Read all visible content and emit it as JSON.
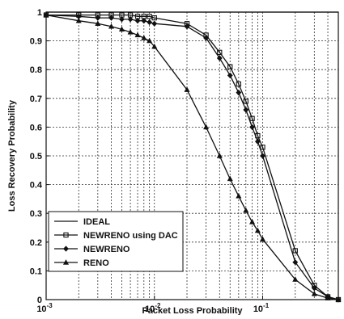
{
  "chart_data": {
    "type": "line",
    "xlabel": "Packet Loss Probability",
    "ylabel": "Loss Recovery Probability",
    "xscale": "log",
    "xlim": [
      0.001,
      0.5
    ],
    "ylim": [
      0,
      1
    ],
    "grid": true,
    "legend_position": "bottom-left",
    "x_ticks": [
      {
        "value": 0.001,
        "base": "10",
        "exp": "-3"
      },
      {
        "value": 0.01,
        "base": "10",
        "exp": "-2"
      },
      {
        "value": 0.1,
        "base": "10",
        "exp": "-1"
      }
    ],
    "y_ticks": [
      {
        "value": 0,
        "label": "0"
      },
      {
        "value": 0.1,
        "label": "0.1"
      },
      {
        "value": 0.2,
        "label": "0.2"
      },
      {
        "value": 0.3,
        "label": "0.3"
      },
      {
        "value": 0.4,
        "label": "0.4"
      },
      {
        "value": 0.5,
        "label": "0.5"
      },
      {
        "value": 0.6,
        "label": "0.6"
      },
      {
        "value": 0.7,
        "label": "0.7"
      },
      {
        "value": 0.8,
        "label": "0.8"
      },
      {
        "value": 0.9,
        "label": "0.9"
      },
      {
        "value": 1,
        "label": "1"
      }
    ],
    "series": [
      {
        "name": "IDEAL",
        "marker": "none",
        "points": [
          [
            0.001,
            1
          ],
          [
            0.5,
            1
          ]
        ]
      },
      {
        "name": "NEWRENO using DAC",
        "marker": "square",
        "points": [
          [
            0.001,
            0.99
          ],
          [
            0.002,
            0.99
          ],
          [
            0.003,
            0.99
          ],
          [
            0.004,
            0.99
          ],
          [
            0.005,
            0.99
          ],
          [
            0.006,
            0.99
          ],
          [
            0.007,
            0.985
          ],
          [
            0.008,
            0.985
          ],
          [
            0.009,
            0.985
          ],
          [
            0.01,
            0.98
          ],
          [
            0.02,
            0.96
          ],
          [
            0.03,
            0.92
          ],
          [
            0.04,
            0.86
          ],
          [
            0.05,
            0.81
          ],
          [
            0.06,
            0.75
          ],
          [
            0.07,
            0.69
          ],
          [
            0.08,
            0.63
          ],
          [
            0.09,
            0.57
          ],
          [
            0.1,
            0.53
          ],
          [
            0.2,
            0.17
          ],
          [
            0.3,
            0.05
          ],
          [
            0.4,
            0.01
          ],
          [
            0.5,
            0.0
          ]
        ]
      },
      {
        "name": "NEWRENO",
        "marker": "diamond",
        "points": [
          [
            0.001,
            0.99
          ],
          [
            0.002,
            0.985
          ],
          [
            0.003,
            0.98
          ],
          [
            0.004,
            0.98
          ],
          [
            0.005,
            0.975
          ],
          [
            0.006,
            0.975
          ],
          [
            0.007,
            0.97
          ],
          [
            0.008,
            0.97
          ],
          [
            0.009,
            0.965
          ],
          [
            0.01,
            0.96
          ],
          [
            0.02,
            0.95
          ],
          [
            0.03,
            0.91
          ],
          [
            0.04,
            0.84
          ],
          [
            0.05,
            0.78
          ],
          [
            0.06,
            0.72
          ],
          [
            0.07,
            0.66
          ],
          [
            0.08,
            0.6
          ],
          [
            0.09,
            0.55
          ],
          [
            0.1,
            0.5
          ],
          [
            0.2,
            0.13
          ],
          [
            0.3,
            0.04
          ],
          [
            0.4,
            0.01
          ],
          [
            0.5,
            0.0
          ]
        ]
      },
      {
        "name": "RENO",
        "marker": "triangle",
        "points": [
          [
            0.001,
            0.99
          ],
          [
            0.002,
            0.97
          ],
          [
            0.003,
            0.96
          ],
          [
            0.004,
            0.95
          ],
          [
            0.005,
            0.94
          ],
          [
            0.006,
            0.93
          ],
          [
            0.007,
            0.92
          ],
          [
            0.008,
            0.91
          ],
          [
            0.009,
            0.9
          ],
          [
            0.01,
            0.88
          ],
          [
            0.02,
            0.73
          ],
          [
            0.03,
            0.6
          ],
          [
            0.04,
            0.5
          ],
          [
            0.05,
            0.42
          ],
          [
            0.06,
            0.36
          ],
          [
            0.07,
            0.31
          ],
          [
            0.08,
            0.27
          ],
          [
            0.09,
            0.24
          ],
          [
            0.1,
            0.21
          ],
          [
            0.2,
            0.07
          ],
          [
            0.3,
            0.02
          ],
          [
            0.4,
            0.005
          ],
          [
            0.5,
            0.0
          ]
        ]
      }
    ]
  }
}
